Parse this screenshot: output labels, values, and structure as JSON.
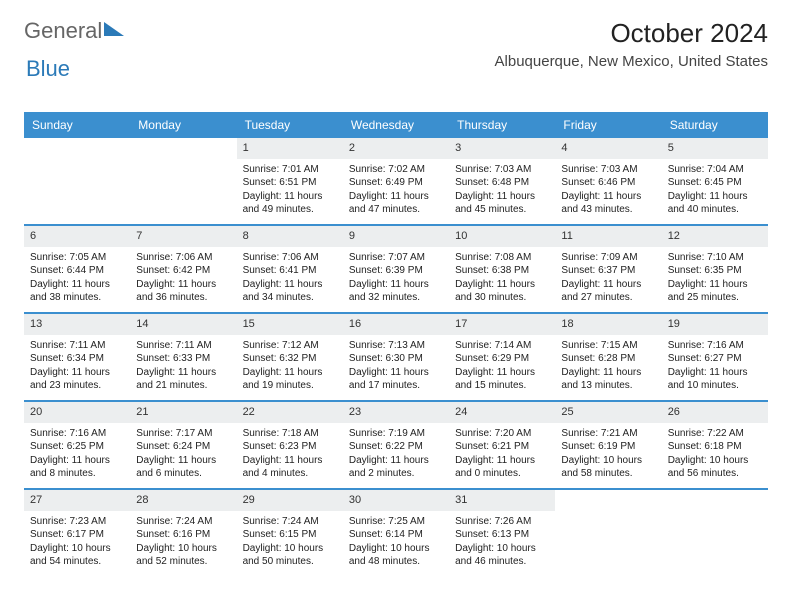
{
  "logo": {
    "text1": "General",
    "text2": "Blue"
  },
  "title": "October 2024",
  "location": "Albuquerque, New Mexico, United States",
  "colors": {
    "header_bg": "#3b8fcf",
    "header_fg": "#ffffff",
    "daynum_bg": "#eceeef",
    "rule": "#3b8fcf"
  },
  "dayNames": [
    "Sunday",
    "Monday",
    "Tuesday",
    "Wednesday",
    "Thursday",
    "Friday",
    "Saturday"
  ],
  "weeks": [
    [
      null,
      null,
      {
        "n": "1",
        "sunrise": "Sunrise: 7:01 AM",
        "sunset": "Sunset: 6:51 PM",
        "daylight": "Daylight: 11 hours and 49 minutes."
      },
      {
        "n": "2",
        "sunrise": "Sunrise: 7:02 AM",
        "sunset": "Sunset: 6:49 PM",
        "daylight": "Daylight: 11 hours and 47 minutes."
      },
      {
        "n": "3",
        "sunrise": "Sunrise: 7:03 AM",
        "sunset": "Sunset: 6:48 PM",
        "daylight": "Daylight: 11 hours and 45 minutes."
      },
      {
        "n": "4",
        "sunrise": "Sunrise: 7:03 AM",
        "sunset": "Sunset: 6:46 PM",
        "daylight": "Daylight: 11 hours and 43 minutes."
      },
      {
        "n": "5",
        "sunrise": "Sunrise: 7:04 AM",
        "sunset": "Sunset: 6:45 PM",
        "daylight": "Daylight: 11 hours and 40 minutes."
      }
    ],
    [
      {
        "n": "6",
        "sunrise": "Sunrise: 7:05 AM",
        "sunset": "Sunset: 6:44 PM",
        "daylight": "Daylight: 11 hours and 38 minutes."
      },
      {
        "n": "7",
        "sunrise": "Sunrise: 7:06 AM",
        "sunset": "Sunset: 6:42 PM",
        "daylight": "Daylight: 11 hours and 36 minutes."
      },
      {
        "n": "8",
        "sunrise": "Sunrise: 7:06 AM",
        "sunset": "Sunset: 6:41 PM",
        "daylight": "Daylight: 11 hours and 34 minutes."
      },
      {
        "n": "9",
        "sunrise": "Sunrise: 7:07 AM",
        "sunset": "Sunset: 6:39 PM",
        "daylight": "Daylight: 11 hours and 32 minutes."
      },
      {
        "n": "10",
        "sunrise": "Sunrise: 7:08 AM",
        "sunset": "Sunset: 6:38 PM",
        "daylight": "Daylight: 11 hours and 30 minutes."
      },
      {
        "n": "11",
        "sunrise": "Sunrise: 7:09 AM",
        "sunset": "Sunset: 6:37 PM",
        "daylight": "Daylight: 11 hours and 27 minutes."
      },
      {
        "n": "12",
        "sunrise": "Sunrise: 7:10 AM",
        "sunset": "Sunset: 6:35 PM",
        "daylight": "Daylight: 11 hours and 25 minutes."
      }
    ],
    [
      {
        "n": "13",
        "sunrise": "Sunrise: 7:11 AM",
        "sunset": "Sunset: 6:34 PM",
        "daylight": "Daylight: 11 hours and 23 minutes."
      },
      {
        "n": "14",
        "sunrise": "Sunrise: 7:11 AM",
        "sunset": "Sunset: 6:33 PM",
        "daylight": "Daylight: 11 hours and 21 minutes."
      },
      {
        "n": "15",
        "sunrise": "Sunrise: 7:12 AM",
        "sunset": "Sunset: 6:32 PM",
        "daylight": "Daylight: 11 hours and 19 minutes."
      },
      {
        "n": "16",
        "sunrise": "Sunrise: 7:13 AM",
        "sunset": "Sunset: 6:30 PM",
        "daylight": "Daylight: 11 hours and 17 minutes."
      },
      {
        "n": "17",
        "sunrise": "Sunrise: 7:14 AM",
        "sunset": "Sunset: 6:29 PM",
        "daylight": "Daylight: 11 hours and 15 minutes."
      },
      {
        "n": "18",
        "sunrise": "Sunrise: 7:15 AM",
        "sunset": "Sunset: 6:28 PM",
        "daylight": "Daylight: 11 hours and 13 minutes."
      },
      {
        "n": "19",
        "sunrise": "Sunrise: 7:16 AM",
        "sunset": "Sunset: 6:27 PM",
        "daylight": "Daylight: 11 hours and 10 minutes."
      }
    ],
    [
      {
        "n": "20",
        "sunrise": "Sunrise: 7:16 AM",
        "sunset": "Sunset: 6:25 PM",
        "daylight": "Daylight: 11 hours and 8 minutes."
      },
      {
        "n": "21",
        "sunrise": "Sunrise: 7:17 AM",
        "sunset": "Sunset: 6:24 PM",
        "daylight": "Daylight: 11 hours and 6 minutes."
      },
      {
        "n": "22",
        "sunrise": "Sunrise: 7:18 AM",
        "sunset": "Sunset: 6:23 PM",
        "daylight": "Daylight: 11 hours and 4 minutes."
      },
      {
        "n": "23",
        "sunrise": "Sunrise: 7:19 AM",
        "sunset": "Sunset: 6:22 PM",
        "daylight": "Daylight: 11 hours and 2 minutes."
      },
      {
        "n": "24",
        "sunrise": "Sunrise: 7:20 AM",
        "sunset": "Sunset: 6:21 PM",
        "daylight": "Daylight: 11 hours and 0 minutes."
      },
      {
        "n": "25",
        "sunrise": "Sunrise: 7:21 AM",
        "sunset": "Sunset: 6:19 PM",
        "daylight": "Daylight: 10 hours and 58 minutes."
      },
      {
        "n": "26",
        "sunrise": "Sunrise: 7:22 AM",
        "sunset": "Sunset: 6:18 PM",
        "daylight": "Daylight: 10 hours and 56 minutes."
      }
    ],
    [
      {
        "n": "27",
        "sunrise": "Sunrise: 7:23 AM",
        "sunset": "Sunset: 6:17 PM",
        "daylight": "Daylight: 10 hours and 54 minutes."
      },
      {
        "n": "28",
        "sunrise": "Sunrise: 7:24 AM",
        "sunset": "Sunset: 6:16 PM",
        "daylight": "Daylight: 10 hours and 52 minutes."
      },
      {
        "n": "29",
        "sunrise": "Sunrise: 7:24 AM",
        "sunset": "Sunset: 6:15 PM",
        "daylight": "Daylight: 10 hours and 50 minutes."
      },
      {
        "n": "30",
        "sunrise": "Sunrise: 7:25 AM",
        "sunset": "Sunset: 6:14 PM",
        "daylight": "Daylight: 10 hours and 48 minutes."
      },
      {
        "n": "31",
        "sunrise": "Sunrise: 7:26 AM",
        "sunset": "Sunset: 6:13 PM",
        "daylight": "Daylight: 10 hours and 46 minutes."
      },
      null,
      null
    ]
  ]
}
